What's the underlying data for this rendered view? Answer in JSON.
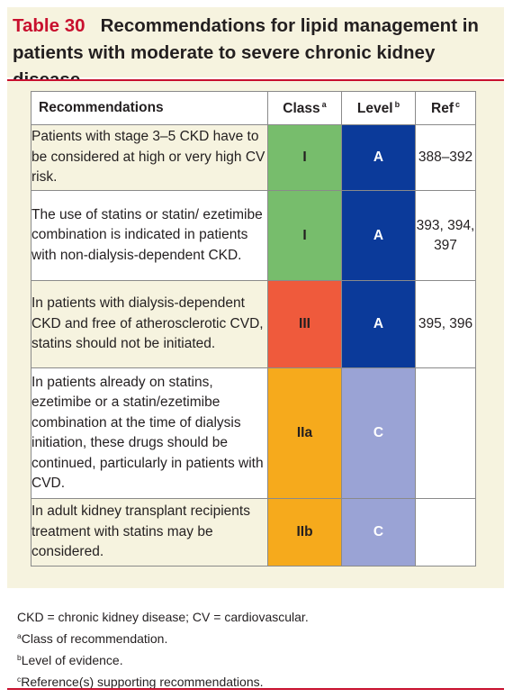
{
  "title": {
    "number": "Table 30",
    "text": "Recommendations for lipid management in patients with moderate to severe chronic kidney disease"
  },
  "table": {
    "headers": {
      "recommendations": "Recommendations",
      "class": "Class",
      "class_note": "a",
      "level": "Level",
      "level_note": "b",
      "ref": "Ref",
      "ref_note": "c"
    },
    "rows": [
      {
        "text": "Patients with stage 3–5 CKD have to be considered at high or very high CV risk.",
        "class": "I",
        "class_color": "#77bd6c",
        "level": "A",
        "level_color": "#0b3a9a",
        "ref": "388–392",
        "bg": "#f6f3df"
      },
      {
        "text": "The use of statins or statin/ ezetimibe combination is indicated in patients with non-dialysis-dependent CKD.",
        "class": "I",
        "class_color": "#77bd6c",
        "level": "A",
        "level_color": "#0b3a9a",
        "ref": "393, 394, 397",
        "bg": "#ffffff"
      },
      {
        "text": "In patients with dialysis-dependent CKD and free of atherosclerotic CVD, statins should not be initiated.",
        "class": "III",
        "class_color": "#ef5a3c",
        "level": "A",
        "level_color": "#0b3a9a",
        "ref": "395, 396",
        "bg": "#f6f3df"
      },
      {
        "text": "In patients already on statins, ezetimibe or a statin/ezetimibe combination at the time of dialysis initiation, these drugs should be continued, particularly in patients with CVD.",
        "class": "IIa",
        "class_color": "#f6aa1c",
        "level": "C",
        "level_color": "#9aa3d5",
        "ref": "",
        "bg": "#ffffff"
      },
      {
        "text": "In adult kidney transplant recipients treatment with statins may be considered.",
        "class": "IIb",
        "class_color": "#f6aa1c",
        "level": "C",
        "level_color": "#9aa3d5",
        "ref": "",
        "bg": "#f6f3df"
      }
    ]
  },
  "footnotes": {
    "abbrev": "CKD = chronic kidney disease; CV = cardiovascular.",
    "a_mark": "a",
    "a": "Class of recommendation.",
    "b_mark": "b",
    "b": "Level of evidence.",
    "c_mark": "c",
    "c": "Reference(s) supporting recommendations."
  },
  "colors": {
    "accent_red": "#c8102e",
    "panel_beige": "#f6f3df"
  }
}
